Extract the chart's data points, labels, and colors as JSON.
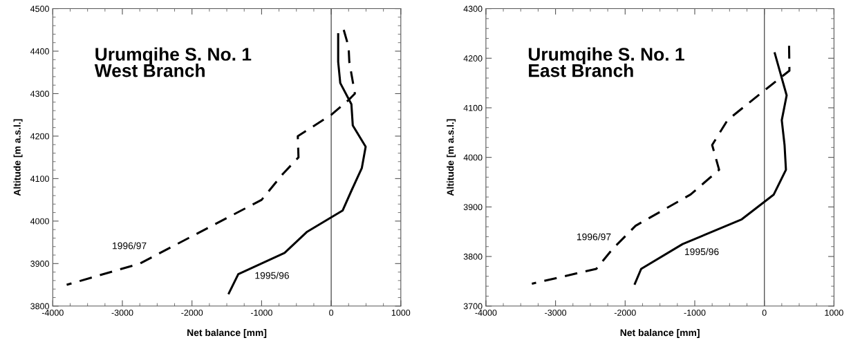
{
  "chart_data": [
    {
      "type": "line",
      "title": "Urumqihe S. No. 1\nWest Branch",
      "xlabel": "Net balance [mm]",
      "ylabel": "Altitude [m a.s.l.]",
      "xlim": [
        -4000,
        1000
      ],
      "xticks": [
        -4000,
        -3000,
        -2000,
        -1000,
        0,
        1000
      ],
      "ylim": [
        3800,
        4500
      ],
      "yticks": [
        3800,
        3900,
        4000,
        4100,
        4200,
        4300,
        4400,
        4500
      ],
      "grid": false,
      "legend": false,
      "marker": "none",
      "series": [
        {
          "name": "1995/96",
          "color": "#000000",
          "line_style": "solid",
          "x": [
            100,
            100,
            130,
            290,
            310,
            495,
            440,
            300,
            165,
            -345,
            -670,
            -1335,
            -1470
          ],
          "values": [
            4440,
            4375,
            4325,
            4275,
            4225,
            4175,
            4125,
            4075,
            4025,
            3975,
            3925,
            3875,
            3830
          ]
        },
        {
          "name": "1996/97",
          "color": "#000000",
          "line_style": "dashed",
          "x": [
            180,
            250,
            260,
            340,
            250,
            0,
            -480,
            -470,
            -700,
            -1000,
            -2750,
            -3800
          ],
          "values": [
            4450,
            4410,
            4375,
            4300,
            4285,
            4250,
            4200,
            4150,
            4110,
            4050,
            3900,
            3850
          ]
        }
      ],
      "ref_lines": [
        {
          "axis": "x",
          "value": 0,
          "color": "#555555"
        }
      ]
    },
    {
      "type": "line",
      "title": "Urumqihe S. No. 1\nEast Branch",
      "xlabel": "Net balance [mm]",
      "ylabel": "Altitude [m a.s.l.]",
      "xlim": [
        -4000,
        1000
      ],
      "xticks": [
        -4000,
        -3000,
        -2000,
        -1000,
        0,
        1000
      ],
      "ylim": [
        3700,
        4300
      ],
      "yticks": [
        3700,
        3800,
        3900,
        4000,
        4100,
        4200,
        4300
      ],
      "grid": false,
      "legend": false,
      "marker": "none",
      "series": [
        {
          "name": "1995/96",
          "color": "#000000",
          "line_style": "solid",
          "x": [
            150,
            320,
            250,
            290,
            310,
            135,
            -325,
            -1175,
            -1770,
            -1860
          ],
          "values": [
            4210,
            4125,
            4075,
            4025,
            3975,
            3925,
            3875,
            3825,
            3775,
            3745
          ]
        },
        {
          "name": "1996/97",
          "color": "#000000",
          "line_style": "dashed",
          "x": [
            355,
            360,
            0,
            -530,
            -750,
            -650,
            -1060,
            -1850,
            -2175,
            -2415,
            -3340
          ],
          "values": [
            4225,
            4175,
            4135,
            4075,
            4025,
            3975,
            3925,
            3862,
            3816,
            3775,
            3745
          ]
        }
      ],
      "ref_lines": [
        {
          "axis": "x",
          "value": 0,
          "color": "#555555"
        }
      ]
    }
  ]
}
